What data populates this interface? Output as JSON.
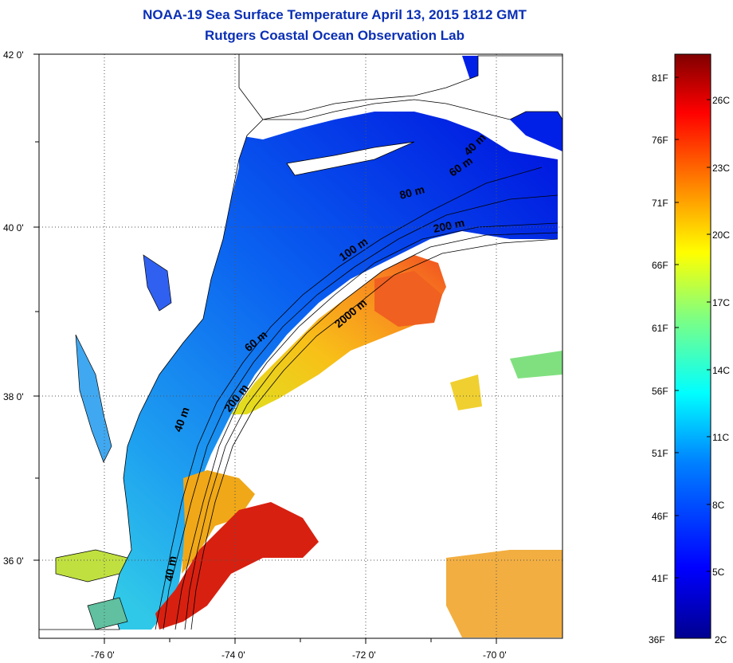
{
  "title": "NOAA-19 Sea Surface Temperature April 13, 2015 1812 GMT",
  "subtitle": "Rutgers Coastal Ocean Observation Lab",
  "map": {
    "lat_ticks": [
      "42 0'",
      "40 0'",
      "38 0'",
      "36 0'"
    ],
    "lon_ticks": [
      "-76 0'",
      "-74 0'",
      "-72 0'",
      "-70 0'"
    ],
    "contour_labels": [
      "40 m",
      "60 m",
      "80 m",
      "200 m",
      "100 m",
      "60 m",
      "2000 m",
      "200 m",
      "40 m",
      "40 m"
    ]
  },
  "colorbar": {
    "fahrenheit_labels": [
      "81F",
      "76F",
      "71F",
      "66F",
      "61F",
      "56F",
      "51F",
      "46F",
      "41F",
      "36F"
    ],
    "celsius_labels": [
      "26C",
      "23C",
      "20C",
      "17C",
      "14C",
      "11C",
      "8C",
      "5C",
      "2C"
    ],
    "colors": [
      "#00008f",
      "#0000ff",
      "#0080ff",
      "#00ffff",
      "#80ff80",
      "#ffff00",
      "#ff8000",
      "#ff0000",
      "#800000"
    ]
  }
}
